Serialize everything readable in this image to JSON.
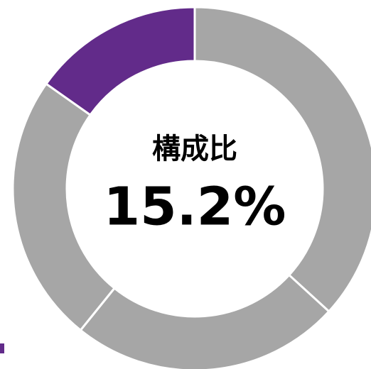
{
  "chart_data": {
    "type": "donut",
    "categories": [
      null,
      null,
      null,
      null
    ],
    "values": [
      36.8,
      24.0,
      24.0,
      15.2
    ],
    "value_labels": [
      null,
      null,
      null,
      "15.2%"
    ],
    "colors": [
      "#a6a6a6",
      "#a6a6a6",
      "#a6a6a6",
      "#622b8a"
    ],
    "center_title": "構成比"
  }
}
